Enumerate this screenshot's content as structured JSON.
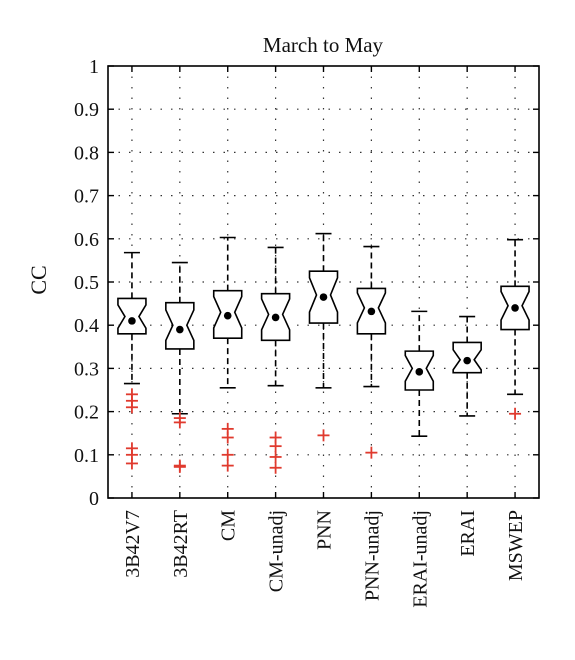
{
  "chart_data": {
    "type": "box",
    "title": "March to May",
    "ylabel": "CC",
    "xlabel": "",
    "ylim": [
      0,
      1
    ],
    "yticks": [
      0,
      0.1,
      0.2,
      0.3,
      0.4,
      0.5,
      0.6,
      0.7,
      0.8,
      0.9,
      1
    ],
    "ytick_labels": [
      "0",
      "0.1",
      "0.2",
      "0.3",
      "0.4",
      "0.5",
      "0.6",
      "0.7",
      "0.8",
      "0.9",
      "1"
    ],
    "grid": true,
    "notched": true,
    "categories": [
      "3B42V7",
      "3B42RT",
      "CM",
      "CM-unadj",
      "PNN",
      "PNN-unadj",
      "ERAI-unadj",
      "ERAI",
      "MSWEP"
    ],
    "boxes": [
      {
        "whisker_low": 0.265,
        "q1": 0.38,
        "median": 0.42,
        "q3": 0.462,
        "whisker_high": 0.568,
        "mean": 0.41,
        "outliers": [
          0.24,
          0.225,
          0.21,
          0.115,
          0.1,
          0.08
        ]
      },
      {
        "whisker_low": 0.195,
        "q1": 0.345,
        "median": 0.4,
        "q3": 0.452,
        "whisker_high": 0.545,
        "mean": 0.39,
        "outliers": [
          0.185,
          0.175,
          0.075,
          0.072
        ]
      },
      {
        "whisker_low": 0.255,
        "q1": 0.37,
        "median": 0.43,
        "q3": 0.48,
        "whisker_high": 0.603,
        "mean": 0.422,
        "outliers": [
          0.16,
          0.14,
          0.1,
          0.075
        ]
      },
      {
        "whisker_low": 0.26,
        "q1": 0.365,
        "median": 0.425,
        "q3": 0.473,
        "whisker_high": 0.58,
        "mean": 0.418,
        "outliers": [
          0.14,
          0.12,
          0.095,
          0.07
        ]
      },
      {
        "whisker_low": 0.255,
        "q1": 0.405,
        "median": 0.47,
        "q3": 0.525,
        "whisker_high": 0.612,
        "mean": 0.465,
        "outliers": [
          0.145
        ]
      },
      {
        "whisker_low": 0.258,
        "q1": 0.38,
        "median": 0.44,
        "q3": 0.485,
        "whisker_high": 0.582,
        "mean": 0.432,
        "outliers": [
          0.105
        ]
      },
      {
        "whisker_low": 0.143,
        "q1": 0.25,
        "median": 0.3,
        "q3": 0.34,
        "whisker_high": 0.432,
        "mean": 0.292,
        "outliers": []
      },
      {
        "whisker_low": 0.19,
        "q1": 0.29,
        "median": 0.32,
        "q3": 0.36,
        "whisker_high": 0.42,
        "mean": 0.318,
        "outliers": []
      },
      {
        "whisker_low": 0.24,
        "q1": 0.39,
        "median": 0.445,
        "q3": 0.49,
        "whisker_high": 0.598,
        "mean": 0.44,
        "outliers": [
          0.195
        ]
      }
    ],
    "colors": {
      "box": "#000000",
      "outlier": "#e03a2e",
      "grid": "#333333",
      "mean": "#000000"
    }
  }
}
